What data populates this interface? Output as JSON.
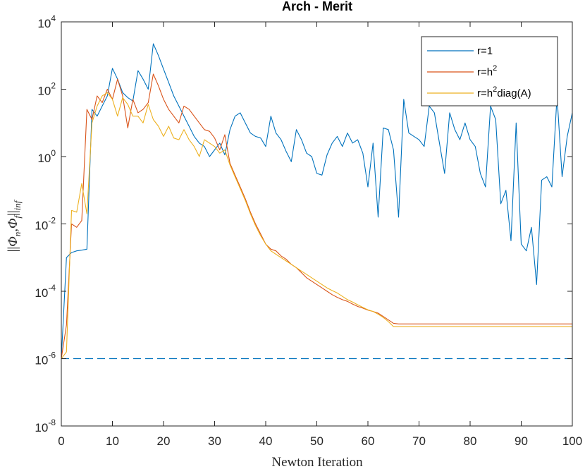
{
  "chart_data": {
    "type": "line",
    "title": "Arch - Merit",
    "xlabel": "Newton Iteration",
    "ylabel": "||Φn,Φf||inf",
    "ylabel_parts": {
      "open": "||",
      "phi1": "Φ",
      "sub1": "n",
      "comma": ",",
      "phi2": "Φ",
      "sub2": "f",
      "close": "||",
      "subinf": "inf"
    },
    "xlim": [
      0,
      100
    ],
    "ylim_log10": [
      -8,
      4
    ],
    "yscale": "log",
    "xticks": [
      0,
      10,
      20,
      30,
      40,
      50,
      60,
      70,
      80,
      90,
      100
    ],
    "xtick_labels": [
      "0",
      "10",
      "20",
      "30",
      "40",
      "50",
      "60",
      "70",
      "80",
      "90",
      "100"
    ],
    "yticks_exp": [
      -8,
      -6,
      -4,
      -2,
      0,
      2,
      4
    ],
    "ytick_base": "10",
    "ytick_exp_labels": [
      "-8",
      "-6",
      "-4",
      "-2",
      "0",
      "2",
      "4"
    ],
    "legend_position": "top-right",
    "reference_line": {
      "y_log10": -6,
      "style": "dashed",
      "color": "#0072BD"
    },
    "series": [
      {
        "name": "r=1",
        "legend_label": {
          "base": "r=1",
          "sup": "",
          "tail": ""
        },
        "color": "#0072BD",
        "x": [
          0,
          1,
          2,
          3,
          4,
          5,
          6,
          7,
          8,
          9,
          10,
          11,
          12,
          13,
          14,
          15,
          16,
          17,
          18,
          19,
          20,
          21,
          22,
          23,
          24,
          25,
          26,
          27,
          28,
          29,
          30,
          31,
          32,
          33,
          34,
          35,
          36,
          37,
          38,
          39,
          40,
          41,
          42,
          43,
          44,
          45,
          46,
          47,
          48,
          49,
          50,
          51,
          52,
          53,
          54,
          55,
          56,
          57,
          58,
          59,
          60,
          61,
          62,
          63,
          64,
          65,
          66,
          67,
          68,
          69,
          70,
          71,
          72,
          73,
          74,
          75,
          76,
          77,
          78,
          79,
          80,
          81,
          82,
          83,
          84,
          85,
          86,
          87,
          88,
          89,
          90,
          91,
          92,
          93,
          94,
          95,
          96,
          97,
          98,
          99,
          100
        ],
        "log10y": [
          -6.0,
          -3.0,
          -2.85,
          -2.8,
          -2.78,
          -2.75,
          1.4,
          1.2,
          1.5,
          1.8,
          2.62,
          2.3,
          1.9,
          1.75,
          1.65,
          2.55,
          2.3,
          2.0,
          3.35,
          3.0,
          2.6,
          2.2,
          1.8,
          1.5,
          1.2,
          0.9,
          0.6,
          0.4,
          0.3,
          0.0,
          0.2,
          0.4,
          0.05,
          0.8,
          1.2,
          1.3,
          1.0,
          0.7,
          0.6,
          0.55,
          0.3,
          1.2,
          0.7,
          0.5,
          0.15,
          -0.15,
          0.8,
          0.5,
          0.1,
          0.0,
          -0.5,
          -0.55,
          0.05,
          0.4,
          0.6,
          0.3,
          0.7,
          0.4,
          0.5,
          0.1,
          -0.9,
          0.4,
          -1.8,
          0.85,
          0.8,
          0.2,
          -1.8,
          1.7,
          0.7,
          0.6,
          0.5,
          0.3,
          1.5,
          1.3,
          0.4,
          -0.5,
          1.3,
          0.8,
          0.5,
          1.0,
          0.5,
          0.3,
          -0.5,
          -0.9,
          1.5,
          1.1,
          -1.4,
          -1.0,
          -2.5,
          1.0,
          -2.6,
          -2.8,
          -2.1,
          -3.8,
          -0.7,
          -0.6,
          -0.9,
          1.8,
          -0.6,
          0.6,
          1.3
        ]
      },
      {
        "name": "r=h^2",
        "legend_label": {
          "base": "r=h",
          "sup": "2",
          "tail": ""
        },
        "color": "#D95319",
        "x": [
          0,
          1,
          2,
          3,
          4,
          5,
          6,
          7,
          8,
          9,
          10,
          11,
          12,
          13,
          14,
          15,
          16,
          17,
          18,
          19,
          20,
          21,
          22,
          23,
          24,
          25,
          26,
          27,
          28,
          29,
          30,
          31,
          32,
          33,
          34,
          35,
          36,
          37,
          38,
          39,
          40,
          41,
          42,
          43,
          44,
          45,
          46,
          47,
          48,
          49,
          50,
          51,
          52,
          53,
          54,
          55,
          56,
          57,
          58,
          59,
          60,
          61,
          62,
          63,
          64,
          65,
          66,
          100
        ],
        "log10y": [
          -6.0,
          -5.0,
          -2.0,
          -2.1,
          -1.9,
          1.4,
          1.1,
          1.8,
          1.6,
          2.0,
          1.7,
          2.3,
          1.8,
          0.85,
          1.7,
          1.3,
          1.4,
          1.6,
          2.45,
          2.1,
          1.7,
          1.4,
          1.2,
          1.0,
          1.5,
          1.4,
          1.2,
          1.0,
          0.8,
          0.75,
          0.55,
          0.2,
          0.65,
          -0.2,
          -0.55,
          -0.9,
          -1.25,
          -1.65,
          -2.0,
          -2.3,
          -2.6,
          -2.75,
          -2.8,
          -2.95,
          -3.05,
          -3.2,
          -3.3,
          -3.45,
          -3.6,
          -3.7,
          -3.8,
          -3.9,
          -4.0,
          -4.1,
          -4.18,
          -4.25,
          -4.3,
          -4.38,
          -4.45,
          -4.5,
          -4.56,
          -4.6,
          -4.65,
          -4.75,
          -4.85,
          -4.95,
          -4.97,
          -4.97
        ]
      },
      {
        "name": "r=h^2diag(A)",
        "legend_label": {
          "base": "r=h",
          "sup": "2",
          "tail": "diag(A)"
        },
        "color": "#EDB120",
        "x": [
          0,
          1,
          2,
          3,
          4,
          5,
          6,
          7,
          8,
          9,
          10,
          11,
          12,
          13,
          14,
          15,
          16,
          17,
          18,
          19,
          20,
          21,
          22,
          23,
          24,
          25,
          26,
          27,
          28,
          29,
          30,
          31,
          32,
          33,
          34,
          35,
          36,
          37,
          38,
          39,
          40,
          41,
          42,
          43,
          44,
          45,
          46,
          47,
          48,
          49,
          50,
          51,
          52,
          53,
          54,
          55,
          56,
          57,
          58,
          59,
          60,
          61,
          62,
          63,
          64,
          65,
          66,
          100
        ],
        "log10y": [
          -6.0,
          -5.8,
          -1.6,
          -1.65,
          -0.8,
          -1.7,
          1.0,
          1.5,
          1.8,
          1.9,
          1.7,
          1.2,
          1.75,
          1.55,
          1.2,
          1.2,
          1.0,
          1.55,
          1.1,
          0.9,
          0.6,
          0.9,
          0.55,
          0.5,
          0.8,
          0.5,
          0.3,
          0.0,
          0.5,
          0.4,
          0.3,
          0.1,
          0.2,
          -0.25,
          -0.6,
          -0.95,
          -1.3,
          -1.7,
          -2.05,
          -2.35,
          -2.6,
          -2.8,
          -2.9,
          -3.0,
          -3.1,
          -3.2,
          -3.3,
          -3.4,
          -3.5,
          -3.6,
          -3.7,
          -3.8,
          -3.9,
          -3.98,
          -4.05,
          -4.15,
          -4.25,
          -4.32,
          -4.4,
          -4.48,
          -4.55,
          -4.6,
          -4.68,
          -4.78,
          -4.9,
          -5.05,
          -5.05,
          -5.05
        ]
      }
    ]
  }
}
